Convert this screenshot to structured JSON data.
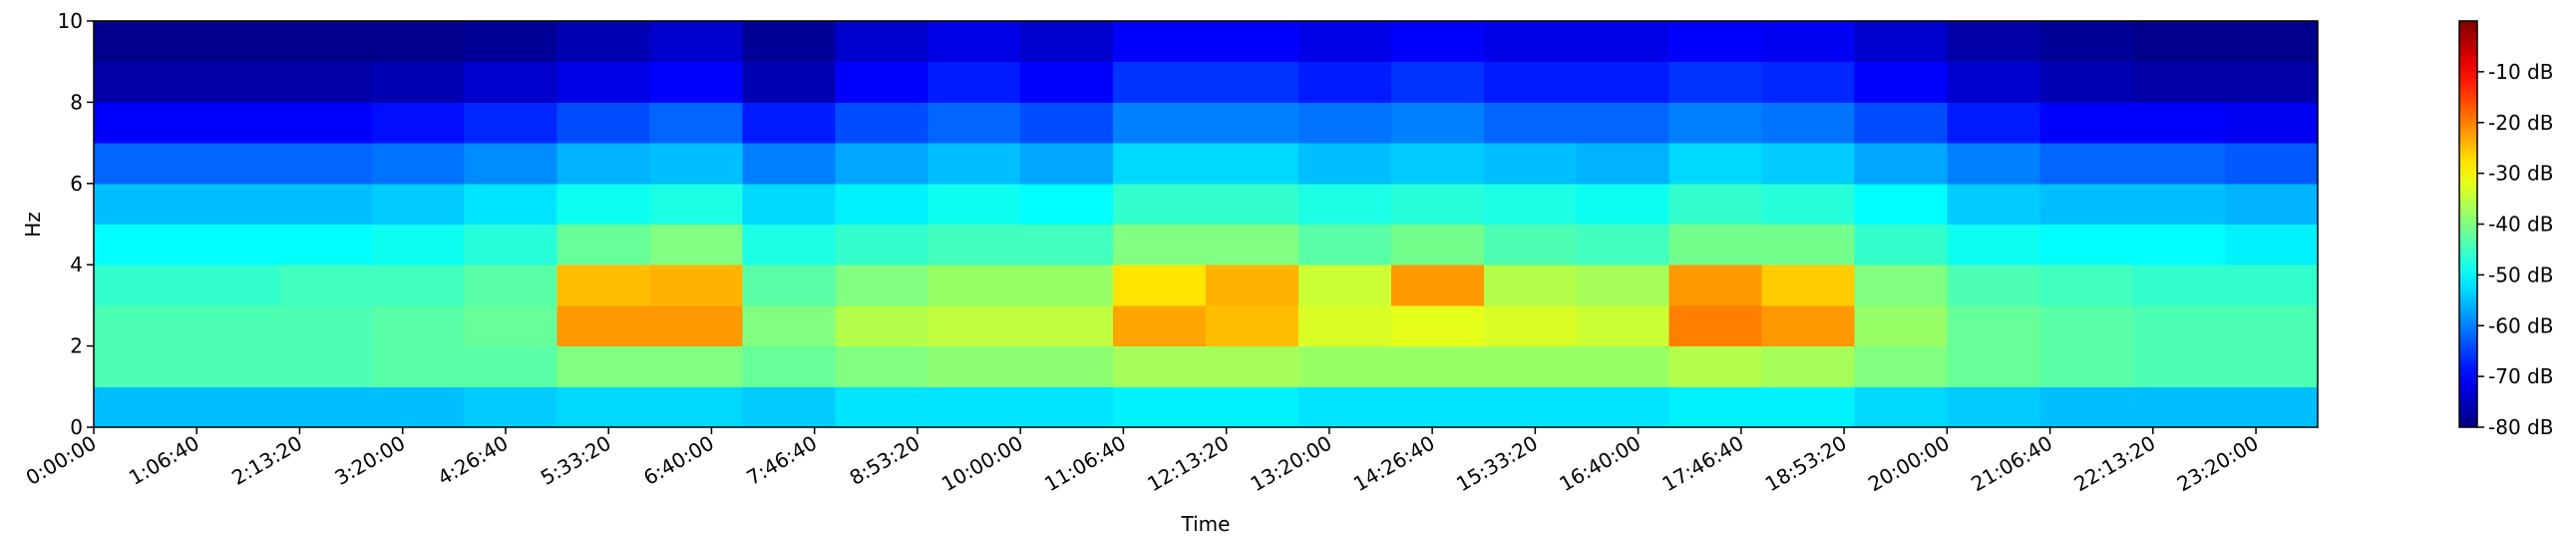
{
  "chart_data": {
    "type": "spectrogram",
    "xlabel": "Time",
    "ylabel": "Hz",
    "xbins": [
      0,
      3600,
      7200,
      10800,
      14400,
      18000,
      21600,
      25200,
      28800,
      32400,
      36000,
      39600,
      43200,
      46800,
      50400,
      54000,
      57600,
      61200,
      64800,
      68400,
      72000,
      75600,
      79200,
      82800,
      86400
    ],
    "ybins": [
      0,
      1,
      2,
      3,
      4,
      5,
      6,
      7,
      8,
      9,
      10
    ],
    "values": [
      [
        -55,
        -55,
        -55,
        -55,
        -54,
        -53,
        -53,
        -54,
        -52,
        -52,
        -52,
        -51,
        -51,
        -52,
        -52,
        -52,
        -52,
        -51,
        -51,
        -53,
        -54,
        -55,
        -55,
        -55
      ],
      [
        -44,
        -44,
        -44,
        -43,
        -43,
        -40,
        -40,
        -42,
        -40,
        -39,
        -39,
        -37,
        -37,
        -38,
        -38,
        -38,
        -38,
        -36,
        -37,
        -40,
        -42,
        -43,
        -44,
        -44
      ],
      [
        -44,
        -44,
        -44,
        -43,
        -42,
        -22,
        -22,
        -40,
        -36,
        -35,
        -35,
        -23,
        -25,
        -33,
        -32,
        -33,
        -34,
        -20,
        -22,
        -38,
        -42,
        -43,
        -44,
        -44
      ],
      [
        -46,
        -46,
        -45,
        -45,
        -43,
        -25,
        -24,
        -43,
        -40,
        -38,
        -38,
        -28,
        -24,
        -34,
        -22,
        -36,
        -37,
        -22,
        -26,
        -40,
        -44,
        -45,
        -46,
        -46
      ],
      [
        -50,
        -50,
        -50,
        -49,
        -47,
        -42,
        -40,
        -48,
        -46,
        -45,
        -45,
        -40,
        -40,
        -43,
        -41,
        -44,
        -45,
        -41,
        -41,
        -46,
        -49,
        -50,
        -50,
        -51
      ],
      [
        -55,
        -55,
        -55,
        -54,
        -52,
        -49,
        -48,
        -53,
        -51,
        -49,
        -50,
        -46,
        -46,
        -48,
        -47,
        -48,
        -49,
        -46,
        -47,
        -50,
        -54,
        -55,
        -55,
        -56
      ],
      [
        -62,
        -62,
        -62,
        -61,
        -59,
        -56,
        -55,
        -60,
        -57,
        -55,
        -57,
        -53,
        -53,
        -55,
        -54,
        -55,
        -56,
        -53,
        -54,
        -57,
        -60,
        -62,
        -62,
        -63
      ],
      [
        -70,
        -70,
        -70,
        -69,
        -67,
        -64,
        -62,
        -68,
        -64,
        -62,
        -64,
        -60,
        -60,
        -61,
        -60,
        -62,
        -62,
        -60,
        -61,
        -64,
        -68,
        -70,
        -70,
        -71
      ],
      [
        -77,
        -77,
        -77,
        -76,
        -74,
        -72,
        -70,
        -76,
        -70,
        -68,
        -70,
        -66,
        -66,
        -68,
        -66,
        -68,
        -68,
        -66,
        -67,
        -70,
        -74,
        -76,
        -77,
        -77
      ],
      [
        -79,
        -79,
        -79,
        -79,
        -78,
        -76,
        -74,
        -78,
        -74,
        -72,
        -74,
        -70,
        -70,
        -72,
        -70,
        -72,
        -72,
        -70,
        -71,
        -74,
        -77,
        -78,
        -79,
        -79
      ]
    ],
    "colormap": "jet",
    "xlim": [
      0,
      86400
    ],
    "ylim": [
      0,
      10
    ],
    "clim": [
      -80,
      0
    ],
    "xticks": [
      {
        "value": 0,
        "label": "0:00:00"
      },
      {
        "value": 4000,
        "label": "1:06:40"
      },
      {
        "value": 8000,
        "label": "2:13:20"
      },
      {
        "value": 12000,
        "label": "3:20:00"
      },
      {
        "value": 16000,
        "label": "4:26:40"
      },
      {
        "value": 20000,
        "label": "5:33:20"
      },
      {
        "value": 24000,
        "label": "6:40:00"
      },
      {
        "value": 28000,
        "label": "7:46:40"
      },
      {
        "value": 32000,
        "label": "8:53:20"
      },
      {
        "value": 36000,
        "label": "10:00:00"
      },
      {
        "value": 40000,
        "label": "11:06:40"
      },
      {
        "value": 44000,
        "label": "12:13:20"
      },
      {
        "value": 48000,
        "label": "13:20:00"
      },
      {
        "value": 52000,
        "label": "14:26:40"
      },
      {
        "value": 56000,
        "label": "15:33:20"
      },
      {
        "value": 60000,
        "label": "16:40:00"
      },
      {
        "value": 64000,
        "label": "17:46:40"
      },
      {
        "value": 68000,
        "label": "18:53:20"
      },
      {
        "value": 72000,
        "label": "20:00:00"
      },
      {
        "value": 76000,
        "label": "21:06:40"
      },
      {
        "value": 80000,
        "label": "22:13:20"
      },
      {
        "value": 84000,
        "label": "23:20:00"
      }
    ],
    "yticks": [
      0,
      2,
      4,
      6,
      8,
      10
    ],
    "cticks": [
      {
        "value": -10,
        "label": "-10 dB"
      },
      {
        "value": -20,
        "label": "-20 dB"
      },
      {
        "value": -30,
        "label": "-30 dB"
      },
      {
        "value": -40,
        "label": "-40 dB"
      },
      {
        "value": -50,
        "label": "-50 dB"
      },
      {
        "value": -60,
        "label": "-60 dB"
      },
      {
        "value": -70,
        "label": "-70 dB"
      },
      {
        "value": -80,
        "label": "-80 dB"
      }
    ]
  }
}
